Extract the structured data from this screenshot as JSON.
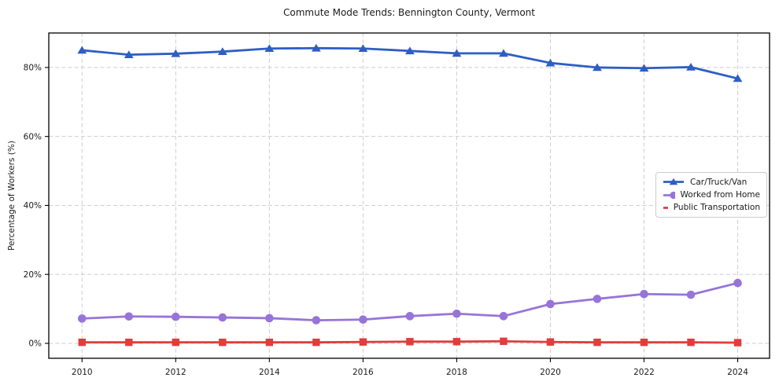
{
  "chart_data": {
    "type": "line",
    "title": "Commute Mode Trends: Bennington County, Vermont",
    "xlabel": "",
    "ylabel": "Percentage of Workers (%)",
    "x": [
      2010,
      2011,
      2012,
      2013,
      2014,
      2015,
      2016,
      2017,
      2018,
      2019,
      2020,
      2021,
      2022,
      2023,
      2024
    ],
    "xticks": [
      2010,
      2012,
      2014,
      2016,
      2018,
      2020,
      2022,
      2024
    ],
    "yticks": [
      0,
      20,
      40,
      60,
      80
    ],
    "ytick_suffix": "%",
    "xlim": [
      2009.29,
      2024.68
    ],
    "ylim": [
      -4.33,
      90.0
    ],
    "grid": true,
    "grid_style": "dashed",
    "legend_position": "center-right",
    "series": [
      {
        "name": "Car/Truck/Van",
        "marker": "triangle",
        "color": "#2e5ec4",
        "values": [
          85.0,
          83.7,
          84.0,
          84.6,
          85.5,
          85.6,
          85.5,
          84.8,
          84.1,
          84.1,
          81.3,
          80.0,
          79.8,
          80.1,
          76.8
        ]
      },
      {
        "name": "Worked from Home",
        "marker": "circle",
        "color": "#9774d8",
        "values": [
          7.2,
          7.8,
          7.7,
          7.5,
          7.3,
          6.7,
          6.9,
          7.9,
          8.6,
          7.9,
          11.4,
          12.9,
          14.3,
          14.1,
          17.5
        ]
      },
      {
        "name": "Public Transportation",
        "marker": "square",
        "color": "#e23c3c",
        "values": [
          0.3,
          0.3,
          0.3,
          0.3,
          0.3,
          0.3,
          0.4,
          0.5,
          0.5,
          0.6,
          0.4,
          0.3,
          0.3,
          0.3,
          0.2
        ]
      }
    ],
    "colors": {
      "grid": "#cdcdcd",
      "spine": "#000000",
      "text": "#1a1a1a",
      "background": "#ffffff"
    }
  }
}
